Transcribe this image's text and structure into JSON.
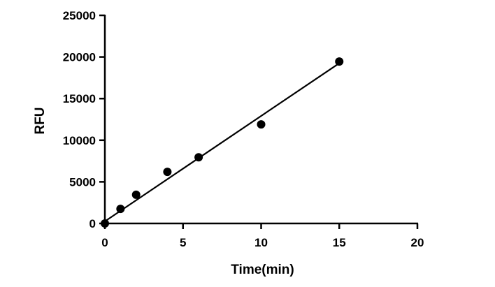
{
  "chart_data": {
    "type": "scatter",
    "xlabel": "Time(min)",
    "ylabel": "RFU",
    "xlim": [
      0,
      20
    ],
    "ylim": [
      0,
      25000
    ],
    "x_ticks": [
      0,
      5,
      10,
      15,
      20
    ],
    "y_ticks": [
      0,
      5000,
      10000,
      15000,
      20000,
      25000
    ],
    "grid": false,
    "legend": "none",
    "series": [
      {
        "points": [
          {
            "x": 0,
            "y": 0
          },
          {
            "x": 1,
            "y": 1750
          },
          {
            "x": 2,
            "y": 3450
          },
          {
            "x": 4,
            "y": 6200
          },
          {
            "x": 6,
            "y": 7950
          },
          {
            "x": 10,
            "y": 11900
          },
          {
            "x": 15,
            "y": 19450
          }
        ],
        "fit_line": {
          "x_start": 0,
          "y_start": 250,
          "x_end": 15,
          "y_end": 19250
        }
      }
    ],
    "colors": {
      "marker": "#000000",
      "line": "#000000",
      "axis": "#000000"
    }
  }
}
